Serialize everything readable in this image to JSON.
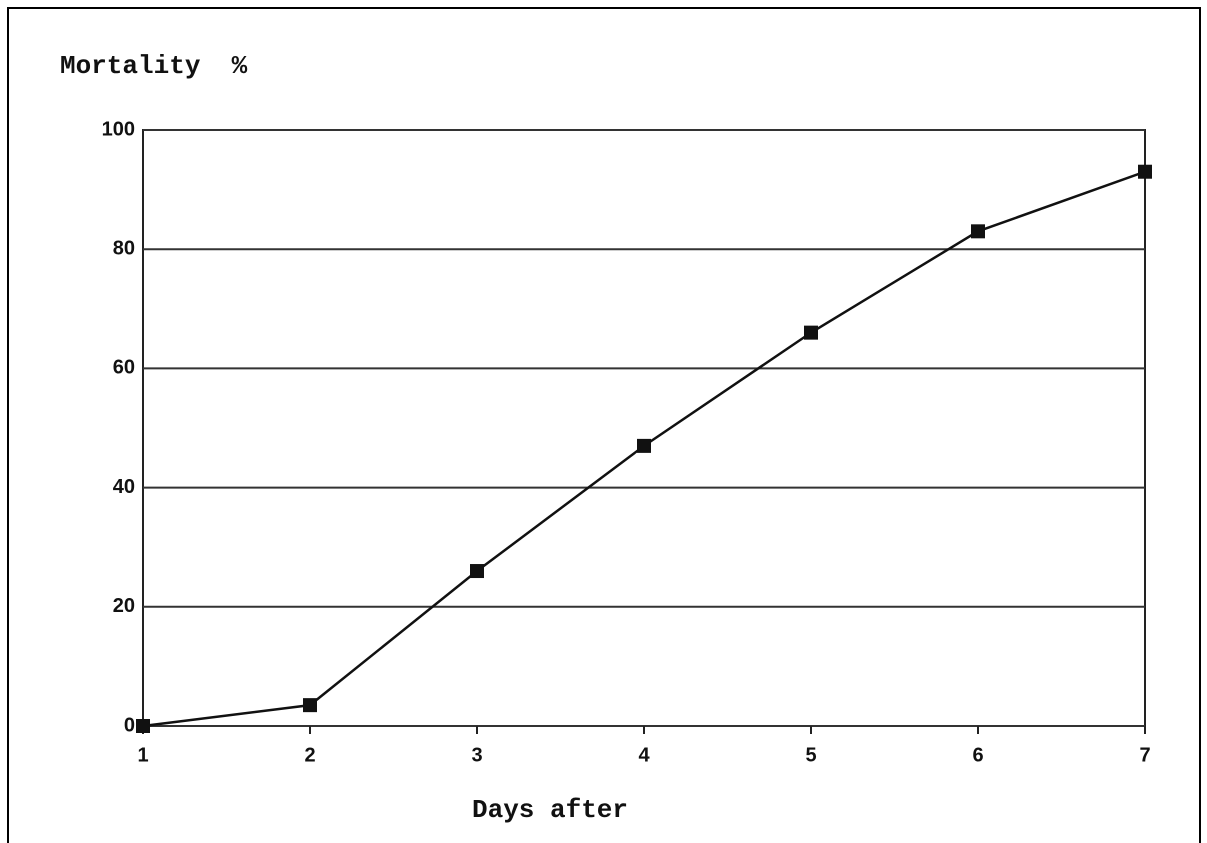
{
  "chart_data": {
    "type": "line",
    "title": "Mortality  %",
    "x_label": "Days after",
    "x": [
      1,
      2,
      3,
      4,
      5,
      6,
      7
    ],
    "series": [
      {
        "color": "#111111",
        "values": [
          0,
          3.5,
          26,
          47,
          66,
          83,
          93
        ]
      }
    ],
    "xlim": [
      1,
      7
    ],
    "xticks": [
      1,
      2,
      3,
      4,
      5,
      6,
      7
    ],
    "ylim": [
      0,
      100
    ],
    "yticks": [
      0,
      20,
      40,
      60,
      80,
      100
    ],
    "grid": true
  }
}
